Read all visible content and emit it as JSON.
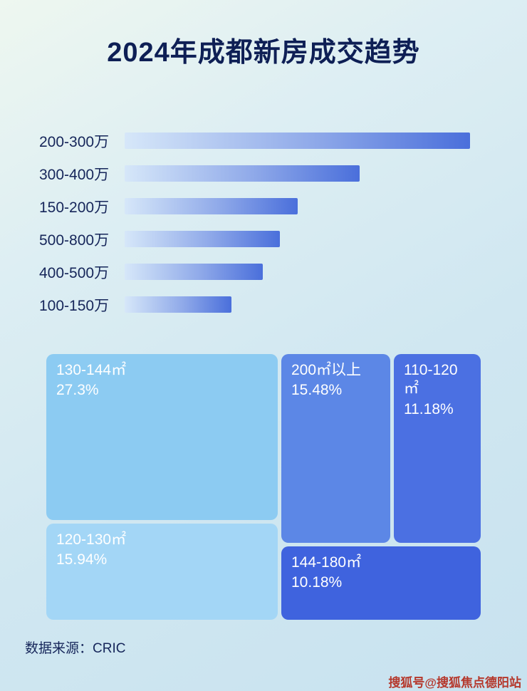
{
  "title": "2024年成都新房成交趋势",
  "chart_data": [
    {
      "type": "bar",
      "orientation": "horizontal",
      "title": "2024年成都新房成交趋势",
      "categories": [
        "200-300万",
        "300-400万",
        "150-200万",
        "500-800万",
        "400-500万",
        "100-150万"
      ],
      "values_pct_of_max": [
        100,
        68,
        50,
        45,
        40,
        31
      ],
      "value_labels_shown": false,
      "axis_shown": false,
      "bar_gradient": [
        "#d6e7f9",
        "#4a6fdb"
      ]
    },
    {
      "type": "treemap",
      "items": [
        {
          "label": "130-144㎡",
          "value": "27.3%",
          "color": "#8ccbf2"
        },
        {
          "label": "120-130㎡",
          "value": "15.94%",
          "color": "#a3d6f6"
        },
        {
          "label": "200㎡以上",
          "value": "15.48%",
          "color": "#5c87e6"
        },
        {
          "label": "110-120㎡",
          "value": "11.18%",
          "color": "#4b70e2"
        },
        {
          "label": "144-180㎡",
          "value": "10.18%",
          "color": "#3f63de"
        }
      ]
    }
  ],
  "footer": {
    "source": "数据来源：CRIC"
  },
  "watermark": "搜狐号@搜狐焦点德阳站",
  "colors": {
    "title_text": "#0e1f55",
    "bar_label_text": "#16265a",
    "watermark_text": "#b5372b"
  }
}
